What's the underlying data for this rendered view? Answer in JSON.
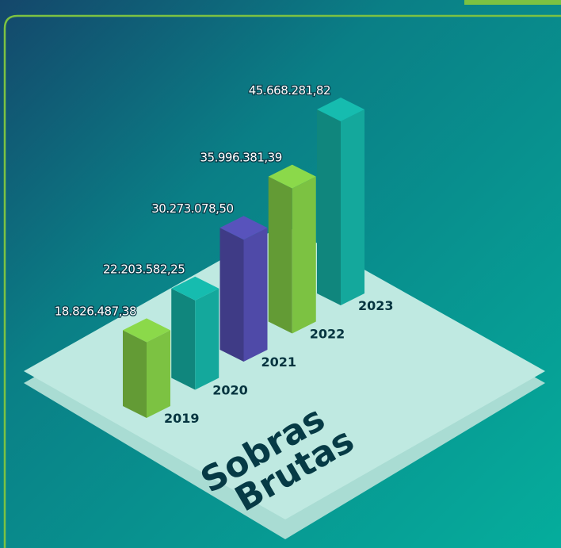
{
  "chart_data": {
    "type": "bar3d",
    "title": [
      "Sobras",
      "Brutas"
    ],
    "categories": [
      "2019",
      "2020",
      "2021",
      "2022",
      "2023"
    ],
    "values": [
      18826487.38,
      22203582.25,
      30273078.5,
      35996381.39,
      45668281.82
    ],
    "value_labels": [
      "18.826.487,38",
      "22.203.582,25",
      "30.273.078,50",
      "35.996.381,39",
      "45.668.281,82"
    ],
    "colors": [
      "#7cc242",
      "#14a89c",
      "#4f4aa8",
      "#7cc242",
      "#14a89c"
    ]
  }
}
